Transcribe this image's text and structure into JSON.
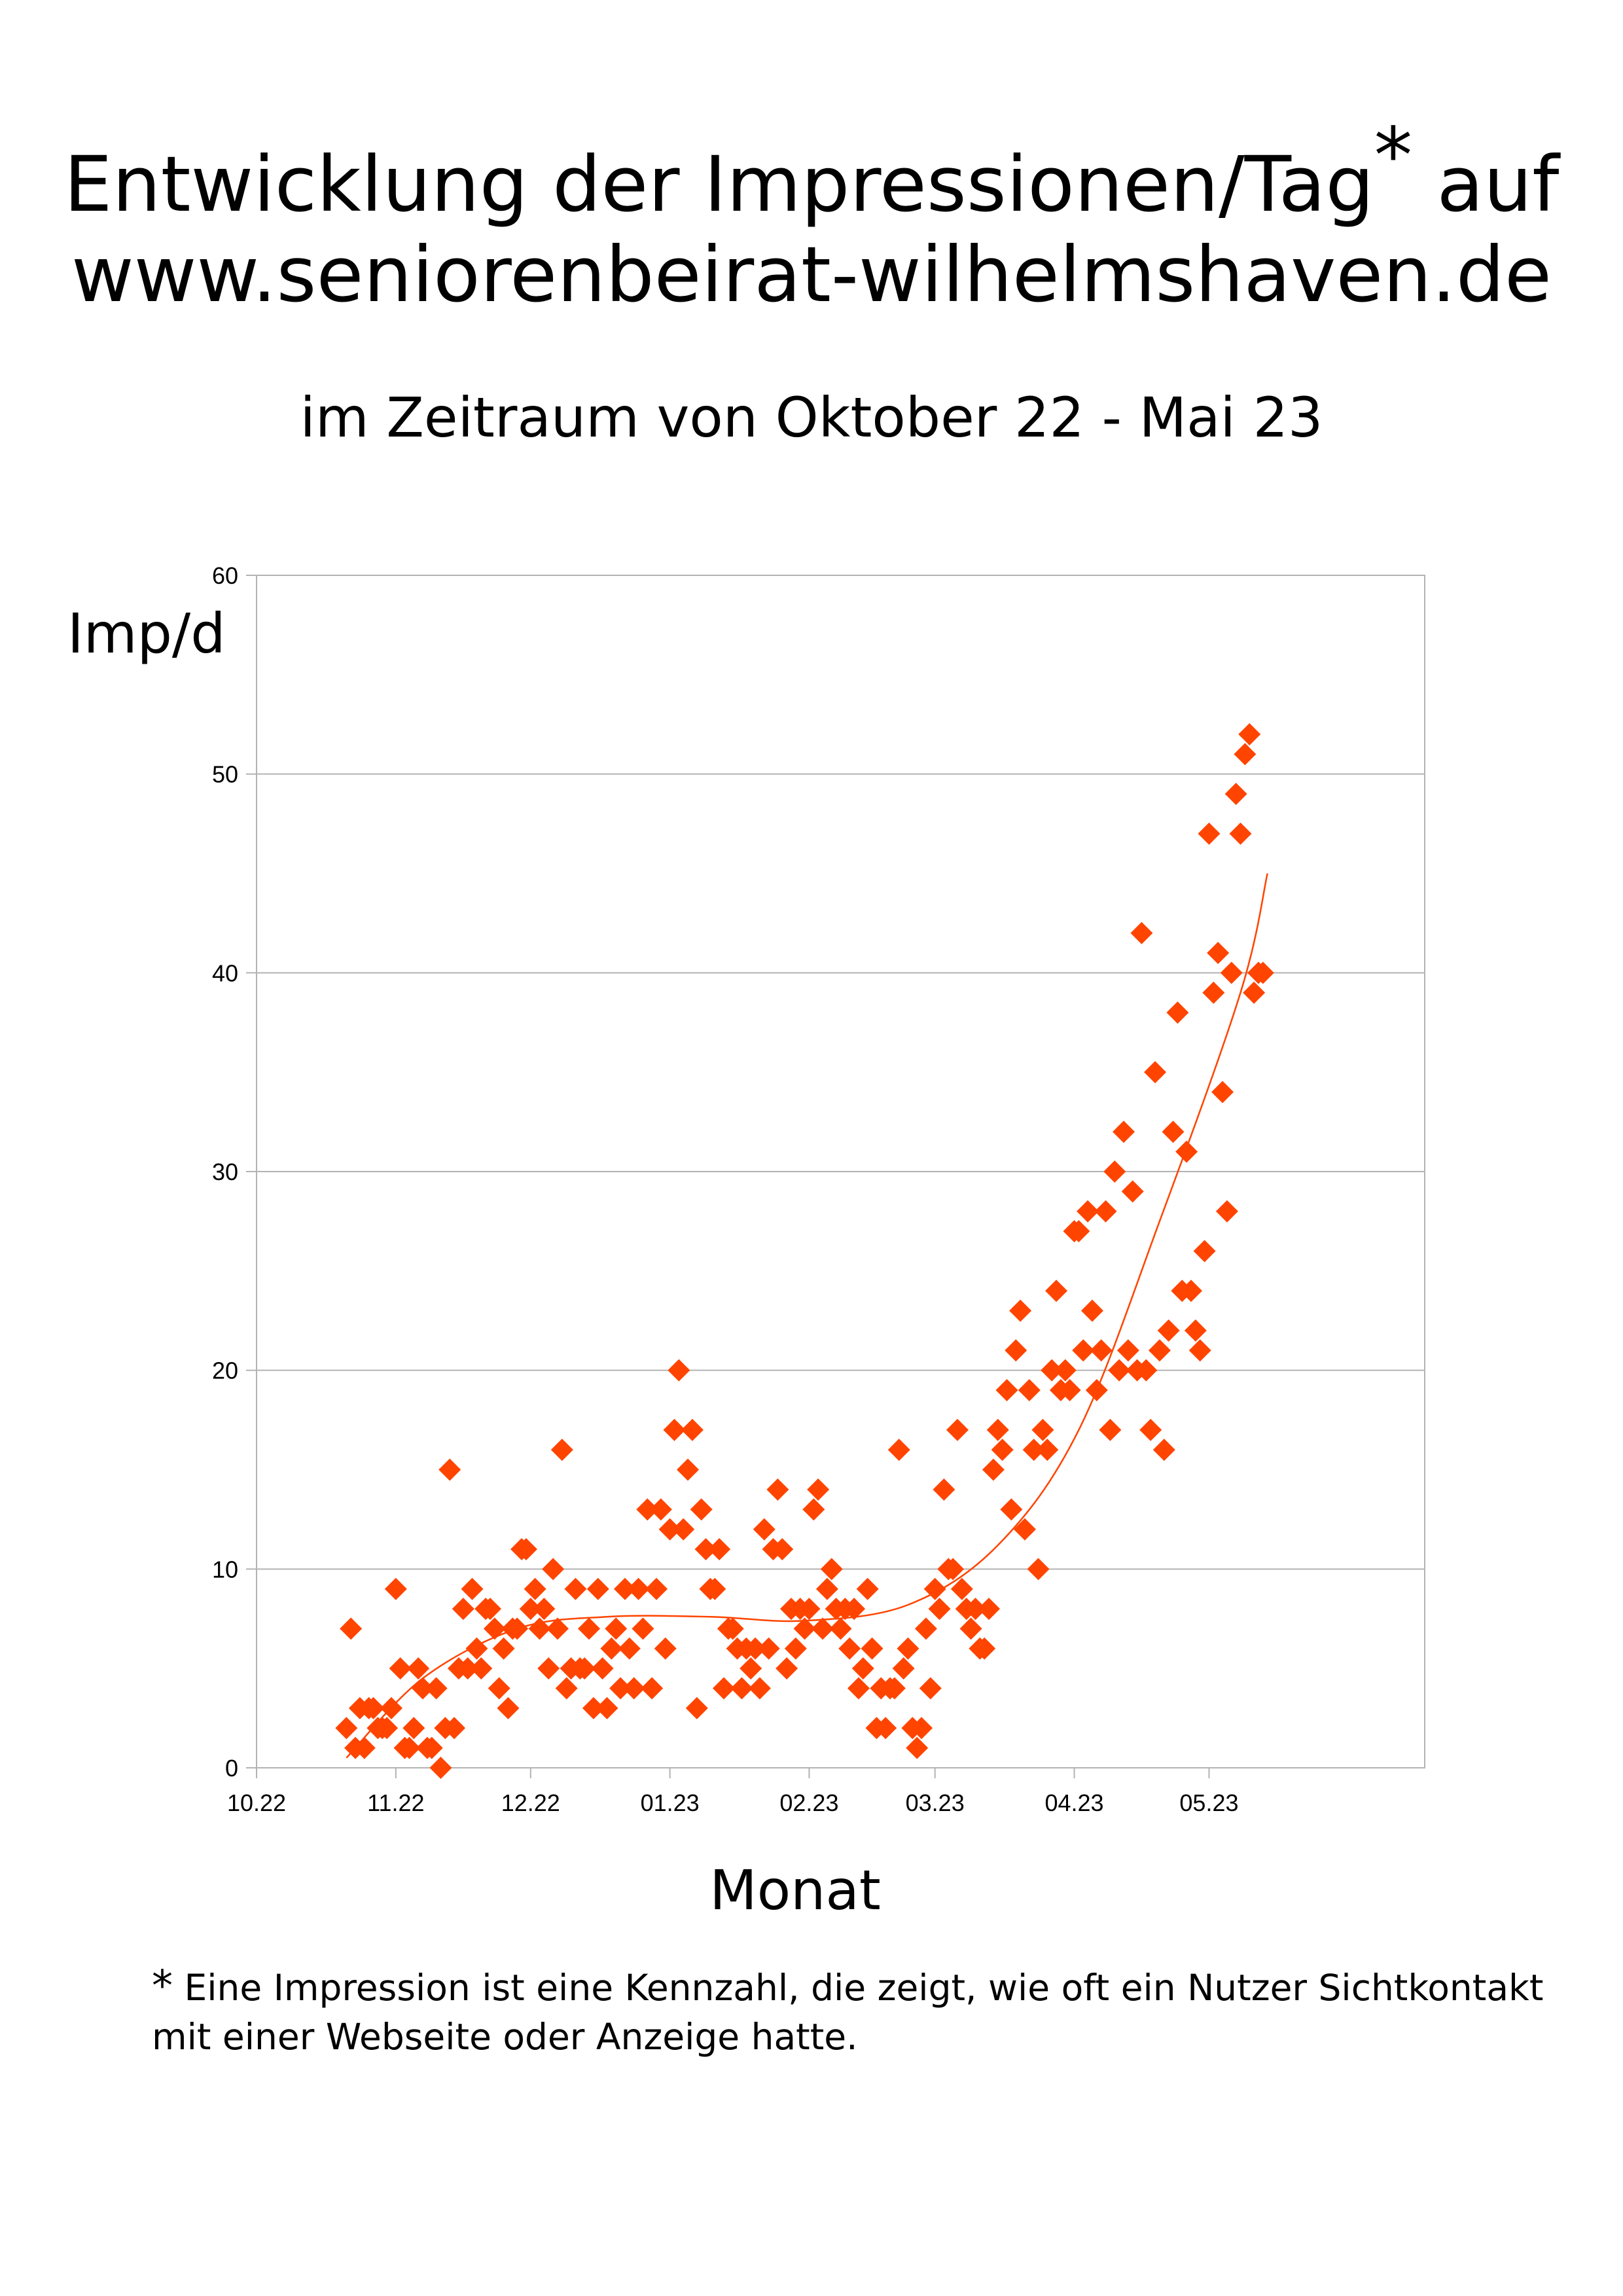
{
  "title": {
    "line1_main": "Entwicklung der Impressionen/Tag",
    "line1_star": "*",
    "line1_end": " auf",
    "line2": "www.seniorenbeirat-wilhelmshaven.de"
  },
  "subtitle": "im Zeitraum von Oktober 22 - Mai 23",
  "footnote": {
    "star": "*",
    "line1": "Eine Impression ist eine Kennzahl, die zeigt, wie oft ein Nutzer Sichtkontakt",
    "line2": "mit einer Webseite oder Anzeige hatte."
  },
  "chart_data": {
    "type": "scatter",
    "ylabel": "Imp/d",
    "xlabel": "Monat",
    "ylim": [
      0,
      60
    ],
    "y_ticks": [
      0,
      10,
      20,
      30,
      40,
      50,
      60
    ],
    "x_tick_labels": [
      "10.22",
      "11.22",
      "12.22",
      "01.23",
      "02.23",
      "03.23",
      "04.23",
      "05.23"
    ],
    "x_tick_dates": [
      "2022-10-01",
      "2022-11-01",
      "2022-12-01",
      "2023-01-01",
      "2023-02-01",
      "2023-03-01",
      "2023-04-01",
      "2023-05-01"
    ],
    "x_range": [
      "2022-10-01",
      "2023-06-18"
    ],
    "grid": "horizontal",
    "marker_color": "#ff4400",
    "trendline_color": "#ff4400",
    "series": [
      {
        "x": [
          "2022-10-21",
          "2022-10-22",
          "2022-10-23",
          "2022-10-24",
          "2022-10-25",
          "2022-10-26",
          "2022-10-27",
          "2022-10-28",
          "2022-10-29",
          "2022-10-30",
          "2022-10-31",
          "2022-11-01",
          "2022-11-02",
          "2022-11-03",
          "2022-11-04",
          "2022-11-05",
          "2022-11-06",
          "2022-11-07",
          "2022-11-08",
          "2022-11-09",
          "2022-11-10",
          "2022-11-11",
          "2022-11-12",
          "2022-11-13",
          "2022-11-14",
          "2022-11-15",
          "2022-11-16",
          "2022-11-17",
          "2022-11-18",
          "2022-11-19",
          "2022-11-20",
          "2022-11-21",
          "2022-11-22",
          "2022-11-23",
          "2022-11-24",
          "2022-11-25",
          "2022-11-26",
          "2022-11-27",
          "2022-11-28",
          "2022-11-29",
          "2022-11-30",
          "2022-12-01",
          "2022-12-02",
          "2022-12-03",
          "2022-12-04",
          "2022-12-05",
          "2022-12-06",
          "2022-12-07",
          "2022-12-08",
          "2022-12-09",
          "2022-12-10",
          "2022-12-11",
          "2022-12-12",
          "2022-12-13",
          "2022-12-14",
          "2022-12-15",
          "2022-12-16",
          "2022-12-17",
          "2022-12-18",
          "2022-12-19",
          "2022-12-20",
          "2022-12-21",
          "2022-12-22",
          "2022-12-23",
          "2022-12-24",
          "2022-12-25",
          "2022-12-26",
          "2022-12-27",
          "2022-12-28",
          "2022-12-29",
          "2022-12-30",
          "2022-12-31",
          "2023-01-01",
          "2023-01-02",
          "2023-01-03",
          "2023-01-04",
          "2023-01-05",
          "2023-01-06",
          "2023-01-07",
          "2023-01-08",
          "2023-01-09",
          "2023-01-10",
          "2023-01-11",
          "2023-01-12",
          "2023-01-13",
          "2023-01-14",
          "2023-01-15",
          "2023-01-16",
          "2023-01-17",
          "2023-01-18",
          "2023-01-19",
          "2023-01-20",
          "2023-01-21",
          "2023-01-22",
          "2023-01-23",
          "2023-01-24",
          "2023-01-25",
          "2023-01-26",
          "2023-01-27",
          "2023-01-28",
          "2023-01-29",
          "2023-01-30",
          "2023-01-31",
          "2023-02-01",
          "2023-02-02",
          "2023-02-03",
          "2023-02-04",
          "2023-02-05",
          "2023-02-06",
          "2023-02-07",
          "2023-02-08",
          "2023-02-09",
          "2023-02-10",
          "2023-02-11",
          "2023-02-12",
          "2023-02-13",
          "2023-02-14",
          "2023-02-15",
          "2023-02-16",
          "2023-02-17",
          "2023-02-18",
          "2023-02-19",
          "2023-02-20",
          "2023-02-21",
          "2023-02-22",
          "2023-02-23",
          "2023-02-24",
          "2023-02-25",
          "2023-02-26",
          "2023-02-27",
          "2023-02-28",
          "2023-03-01",
          "2023-03-02",
          "2023-03-03",
          "2023-03-04",
          "2023-03-05",
          "2023-03-06",
          "2023-03-07",
          "2023-03-08",
          "2023-03-09",
          "2023-03-10",
          "2023-03-11",
          "2023-03-12",
          "2023-03-13",
          "2023-03-14",
          "2023-03-15",
          "2023-03-16",
          "2023-03-17",
          "2023-03-18",
          "2023-03-19",
          "2023-03-20",
          "2023-03-21",
          "2023-03-22",
          "2023-03-23",
          "2023-03-24",
          "2023-03-25",
          "2023-03-26",
          "2023-03-27",
          "2023-03-28",
          "2023-03-29",
          "2023-03-30",
          "2023-03-31",
          "2023-04-01",
          "2023-04-02",
          "2023-04-03",
          "2023-04-04",
          "2023-04-05",
          "2023-04-06",
          "2023-04-07",
          "2023-04-08",
          "2023-04-09",
          "2023-04-10",
          "2023-04-11",
          "2023-04-12",
          "2023-04-13",
          "2023-04-14",
          "2023-04-15",
          "2023-04-16",
          "2023-04-17",
          "2023-04-18",
          "2023-04-19",
          "2023-04-20",
          "2023-04-21",
          "2023-04-22",
          "2023-04-23",
          "2023-04-24",
          "2023-04-25",
          "2023-04-26",
          "2023-04-27",
          "2023-04-28",
          "2023-04-29",
          "2023-04-30",
          "2023-05-01",
          "2023-05-02",
          "2023-05-03",
          "2023-05-04",
          "2023-05-05",
          "2023-05-06",
          "2023-05-07",
          "2023-05-08",
          "2023-05-09",
          "2023-05-10",
          "2023-05-11",
          "2023-05-12",
          "2023-05-13"
        ],
        "y": [
          2,
          7,
          1,
          3,
          1,
          3,
          3,
          2,
          2,
          2,
          3,
          9,
          5,
          1,
          1,
          2,
          5,
          4,
          1,
          1,
          4,
          0,
          2,
          15,
          2,
          5,
          8,
          5,
          9,
          6,
          5,
          8,
          8,
          7,
          4,
          6,
          3,
          7,
          7,
          11,
          11,
          8,
          9,
          7,
          8,
          5,
          10,
          7,
          16,
          4,
          5,
          9,
          5,
          5,
          7,
          3,
          9,
          5,
          3,
          6,
          7,
          4,
          9,
          6,
          4,
          9,
          7,
          13,
          4,
          9,
          13,
          6,
          12,
          17,
          20,
          12,
          15,
          17,
          3,
          13,
          11,
          9,
          9,
          11,
          4,
          7,
          7,
          6,
          4,
          6,
          5,
          6,
          4,
          12,
          6,
          11,
          14,
          11,
          5,
          8,
          6,
          8,
          7,
          8,
          13,
          14,
          7,
          9,
          10,
          8,
          7,
          8,
          6,
          8,
          4,
          5,
          9,
          6,
          2,
          4,
          2,
          4,
          4,
          16,
          5,
          6,
          2,
          1,
          2,
          7,
          4,
          9,
          8,
          14,
          10,
          10,
          17,
          9,
          8,
          7,
          8,
          6,
          6,
          8,
          15,
          17,
          16,
          19,
          13,
          21,
          23,
          12,
          19,
          16,
          10,
          17,
          16,
          20,
          24,
          19,
          20,
          19,
          27,
          27,
          21,
          28,
          23,
          19,
          21,
          28,
          17,
          30,
          20,
          32,
          21,
          29,
          20,
          42,
          20,
          17,
          35,
          21,
          16,
          22,
          32,
          38,
          24,
          31,
          24,
          22,
          21,
          26,
          47,
          39,
          41,
          34,
          28,
          40,
          49,
          47,
          51,
          52,
          39,
          40,
          40
        ]
      }
    ],
    "trendline": {
      "type": "polynomial",
      "x": [
        "2022-10-21",
        "2022-11-07",
        "2022-11-28",
        "2022-12-18",
        "2023-01-10",
        "2023-01-31",
        "2023-02-23",
        "2023-03-15",
        "2023-04-02",
        "2023-04-20",
        "2023-05-08",
        "2023-05-14"
      ],
      "y": [
        0.5,
        4.5,
        7,
        7.6,
        7.6,
        7.4,
        8.2,
        11.2,
        17,
        27.5,
        39,
        45
      ]
    }
  }
}
